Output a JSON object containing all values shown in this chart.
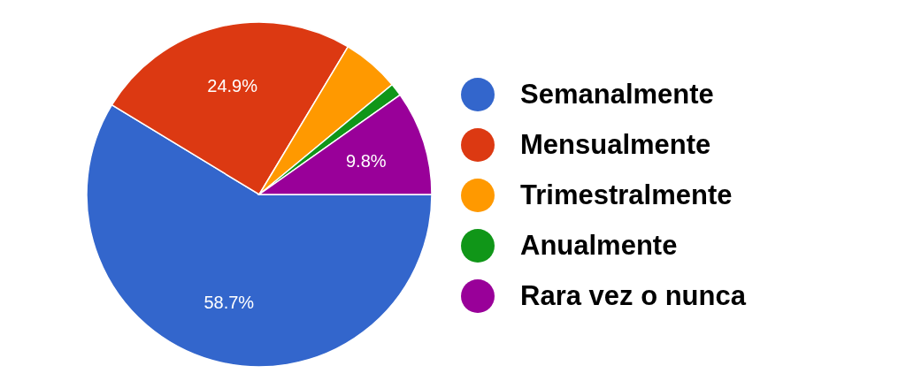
{
  "chart_data": {
    "type": "pie",
    "categories": [
      "Semanalmente",
      "Mensualmente",
      "Trimestralmente",
      "Anualmente",
      "Rara vez o nunca"
    ],
    "values": [
      58.7,
      24.9,
      5.4,
      1.2,
      9.8
    ],
    "colors": [
      "#3366cc",
      "#dc3912",
      "#ff9900",
      "#109618",
      "#990099"
    ],
    "value_labels": [
      "58.7%",
      "24.9%",
      null,
      null,
      "9.8%"
    ],
    "legend": "right"
  }
}
